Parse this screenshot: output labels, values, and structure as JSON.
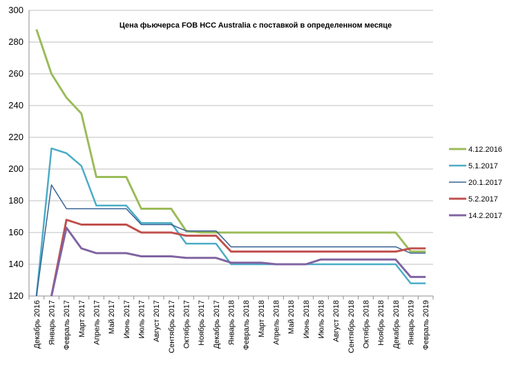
{
  "chart_data": {
    "type": "line",
    "title": "Цена фьючерса  FOB HCC Australia с поставкой  в определенном месяце",
    "xlabel": "",
    "ylabel": "",
    "ylim": [
      120,
      300
    ],
    "y_ticks": [
      120,
      140,
      160,
      180,
      200,
      220,
      240,
      260,
      280,
      300
    ],
    "grid": true,
    "legend_position": "right",
    "categories": [
      "Декабрь 2016",
      "Январь 2017",
      "Февраль 2017",
      "Март 2017",
      "Апрель 2017",
      "Май 2017",
      "Июнь 2017",
      "Июль 2017",
      "Август 2017",
      "Сентябрь 2017",
      "Октябрь 2017",
      "Ноябрь 2017",
      "Декабрь 2017",
      "Январь 2018",
      "Февраль 2018",
      "Март 2018",
      "Апрель 2018",
      "Май 2018",
      "Июнь 2018",
      "Июль 2018",
      "Август 2018",
      "Сентябрь 2018",
      "Октябрь 2018",
      "Ноябрь 2018",
      "Декабрь 2018",
      "Январь 2019",
      "Февраль 2019"
    ],
    "series": [
      {
        "name": "4.12.2016",
        "color": "#9bbb59",
        "width": 3,
        "values": [
          288,
          260,
          245,
          235,
          195,
          195,
          195,
          175,
          175,
          175,
          161,
          160,
          160,
          160,
          160,
          160,
          160,
          160,
          160,
          160,
          160,
          160,
          160,
          160,
          160,
          148,
          148
        ]
      },
      {
        "name": "5.1.2017",
        "color": "#4bacc6",
        "width": 2.5,
        "values": [
          null,
          213,
          210,
          202,
          177,
          177,
          177,
          166,
          166,
          166,
          153,
          153,
          153,
          140,
          140,
          140,
          140,
          140,
          140,
          140,
          140,
          140,
          140,
          140,
          140,
          128,
          128
        ]
      },
      {
        "name": "20.1.2017",
        "color": "#366092",
        "width": 1.5,
        "values": [
          null,
          190,
          175,
          175,
          175,
          175,
          175,
          165,
          165,
          165,
          161,
          161,
          161,
          151,
          151,
          151,
          151,
          151,
          151,
          151,
          151,
          151,
          151,
          151,
          151,
          147,
          147
        ]
      },
      {
        "name": "5.2.2017",
        "color": "#c0504d",
        "width": 3,
        "values": [
          null,
          null,
          168,
          165,
          165,
          165,
          165,
          160,
          160,
          160,
          158,
          158,
          158,
          148,
          148,
          148,
          148,
          148,
          148,
          148,
          148,
          148,
          148,
          148,
          148,
          150,
          150
        ]
      },
      {
        "name": "14.2.2017",
        "color": "#8064a2",
        "width": 3,
        "values": [
          null,
          null,
          163,
          150,
          147,
          147,
          147,
          145,
          145,
          145,
          144,
          144,
          144,
          141,
          141,
          141,
          140,
          140,
          140,
          143,
          143,
          143,
          143,
          143,
          143,
          132,
          132
        ]
      }
    ]
  }
}
